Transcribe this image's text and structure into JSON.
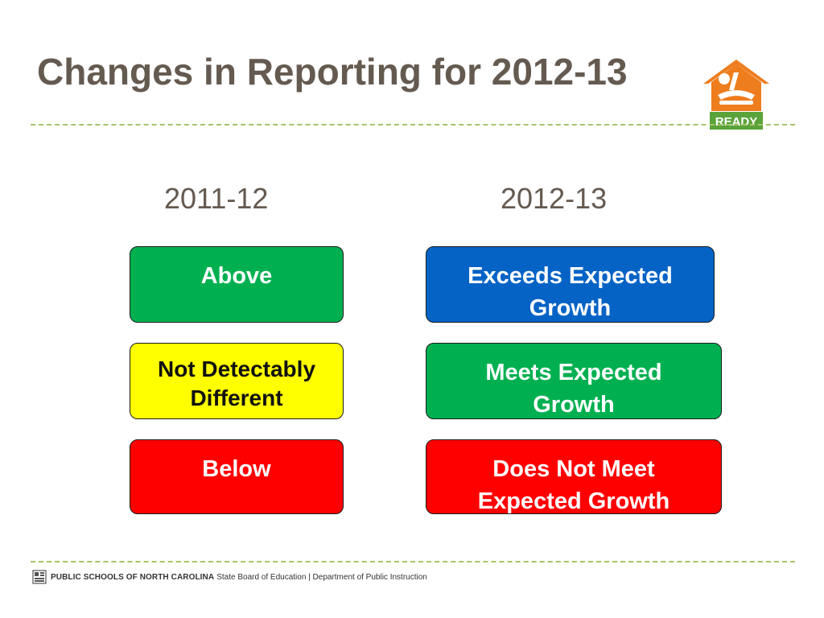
{
  "slide": {
    "title": "Changes in Reporting for 2012-13"
  },
  "logo": {
    "icon": "ready-house-logo",
    "label": "READY",
    "colors": {
      "house": "#ee7d1e",
      "badge": "#5aa33a"
    }
  },
  "columns": {
    "left_header": "2011-12",
    "right_header": "2012-13"
  },
  "left_boxes": [
    {
      "label": "Above",
      "color": "#00b050"
    },
    {
      "label": "Not Detectably Different",
      "color": "#ffff00"
    },
    {
      "label": "Below",
      "color": "#ff0000"
    }
  ],
  "right_boxes": [
    {
      "label": "Exceeds Expected Growth",
      "color": "#0563c6"
    },
    {
      "label": "Meets Expected Growth",
      "color": "#00b050"
    },
    {
      "label": "Does Not Meet Expected Growth",
      "color": "#ff0000"
    }
  ],
  "footer": {
    "icon": "nc-dpi-emblem-icon",
    "org": "PUBLIC SCHOOLS OF NORTH CAROLINA",
    "sub": "State Board of Education | Department of Public Instruction"
  },
  "theme": {
    "title_color": "#655a50",
    "divider_color": "#a8c46a"
  }
}
